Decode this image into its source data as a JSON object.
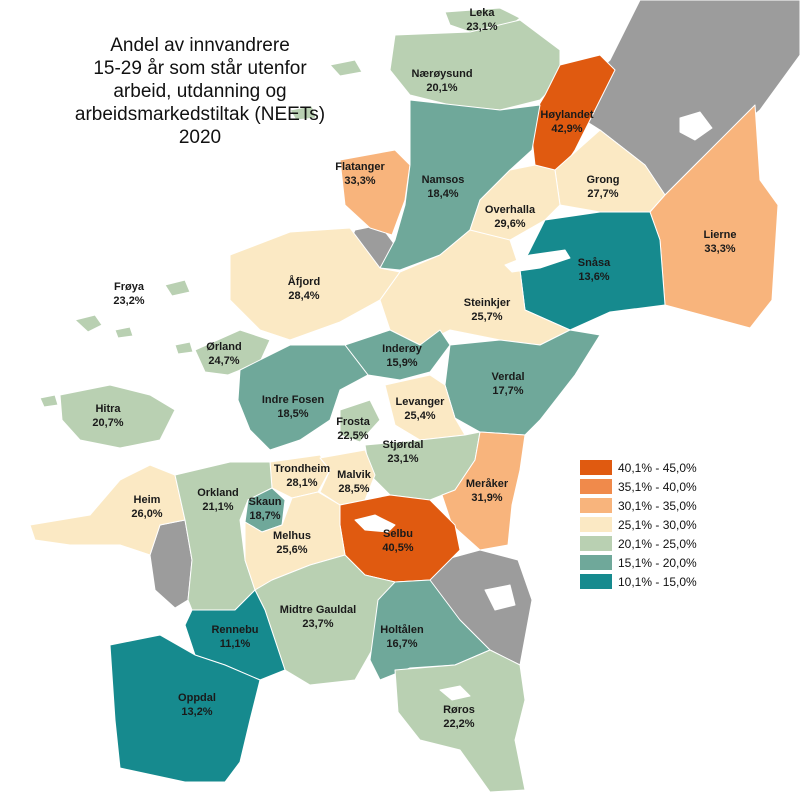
{
  "title": [
    "Andel av innvandrere",
    "15-29 år som står utenfor",
    "arbeid, utdanning og",
    "arbeidsmarkedstiltak (NEETs)",
    "2020"
  ],
  "colors": {
    "c40_45": "#E05A10",
    "c35_40": "#F08A4B",
    "c30_35": "#F8B47C",
    "c25_30": "#FBE9C4",
    "c20_25": "#B9D0B2",
    "c15_20": "#6FA89A",
    "c10_15": "#168A8E",
    "nodata": "#9C9C9C",
    "water": "#FFFFFF"
  },
  "legend": [
    {
      "label": "40,1% - 45,0%",
      "color": "#E05A10"
    },
    {
      "label": "35,1% - 40,0%",
      "color": "#F08A4B"
    },
    {
      "label": "30,1% - 35,0%",
      "color": "#F8B47C"
    },
    {
      "label": "25,1% - 30,0%",
      "color": "#FBE9C4"
    },
    {
      "label": "20,1% - 25,0%",
      "color": "#B9D0B2"
    },
    {
      "label": "15,1% - 20,0%",
      "color": "#6FA89A"
    },
    {
      "label": "10,1% - 15,0%",
      "color": "#168A8E"
    }
  ],
  "municipalities": {
    "leka": {
      "name": "Leka",
      "value": "23,1%"
    },
    "naroysund": {
      "name": "Nærøysund",
      "value": "20,1%"
    },
    "hoylandet": {
      "name": "Høylandet",
      "value": "42,9%"
    },
    "flatanger": {
      "name": "Flatanger",
      "value": "33,3%"
    },
    "namsos": {
      "name": "Namsos",
      "value": "18,4%"
    },
    "grong": {
      "name": "Grong",
      "value": "27,7%"
    },
    "overhalla": {
      "name": "Overhalla",
      "value": "29,6%"
    },
    "lierne": {
      "name": "Lierne",
      "value": "33,3%"
    },
    "snasa": {
      "name": "Snåsa",
      "value": "13,6%"
    },
    "froya": {
      "name": "Frøya",
      "value": "23,2%"
    },
    "afjord": {
      "name": "Åfjord",
      "value": "28,4%"
    },
    "steinkjer": {
      "name": "Steinkjer",
      "value": "25,7%"
    },
    "orland": {
      "name": "Ørland",
      "value": "24,7%"
    },
    "inderoy": {
      "name": "Inderøy",
      "value": "15,9%"
    },
    "verdal": {
      "name": "Verdal",
      "value": "17,7%"
    },
    "hitra": {
      "name": "Hitra",
      "value": "20,7%"
    },
    "indre_fosen": {
      "name": "Indre Fosen",
      "value": "18,5%"
    },
    "levanger": {
      "name": "Levanger",
      "value": "25,4%"
    },
    "frosta": {
      "name": "Frosta",
      "value": "22,5%"
    },
    "stjordal": {
      "name": "Stjørdal",
      "value": "23,1%"
    },
    "trondheim": {
      "name": "Trondheim",
      "value": "28,1%"
    },
    "malvik": {
      "name": "Malvik",
      "value": "28,5%"
    },
    "meraker": {
      "name": "Meråker",
      "value": "31,9%"
    },
    "heim": {
      "name": "Heim",
      "value": "26,0%"
    },
    "orkland": {
      "name": "Orkland",
      "value": "21,1%"
    },
    "skaun": {
      "name": "Skaun",
      "value": "18,7%"
    },
    "selbu": {
      "name": "Selbu",
      "value": "40,5%"
    },
    "melhus": {
      "name": "Melhus",
      "value": "25,6%"
    },
    "midtre_gauldal": {
      "name": "Midtre Gauldal",
      "value": "23,7%"
    },
    "rennebu": {
      "name": "Rennebu",
      "value": "11,1%"
    },
    "holtalen": {
      "name": "Holtålen",
      "value": "16,7%"
    },
    "oppdal": {
      "name": "Oppdal",
      "value": "13,2%"
    },
    "roros": {
      "name": "Røros",
      "value": "22,2%"
    }
  }
}
